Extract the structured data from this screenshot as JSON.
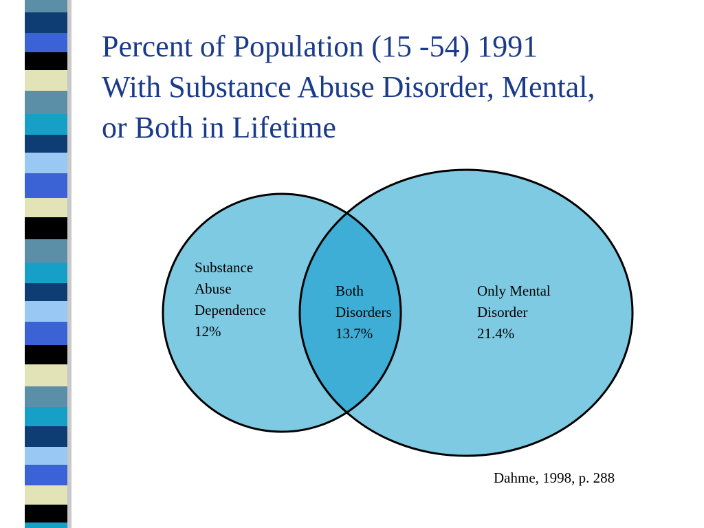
{
  "slide": {
    "title_lines": [
      "Percent of Population (15 -54) 1991",
      "With Substance Abuse Disorder, Mental,",
      "or Both in Lifetime"
    ],
    "citation": "Dahme, 1998, p. 288"
  },
  "venn": {
    "left_set": {
      "lines": [
        "Substance",
        "Abuse",
        "Dependence",
        "12%"
      ],
      "value_percent": 12
    },
    "overlap": {
      "lines": [
        "Both",
        "Disorders",
        "13.7%"
      ],
      "value_percent": 13.7
    },
    "right_set": {
      "lines": [
        "Only Mental",
        "Disorder",
        "21.4%"
      ],
      "value_percent": 21.4
    }
  },
  "colors": {
    "title": "#1a3a8a",
    "circle_fill": "#7ecae3",
    "overlap_fill": "#3eaed6",
    "circle_stroke": "#000000",
    "stripe_palette": [
      "#5b8fa8",
      "#0d3d73",
      "#3b63d6",
      "#000000",
      "#e3e3b8",
      "#16a0c8",
      "#9ac8f5"
    ]
  }
}
